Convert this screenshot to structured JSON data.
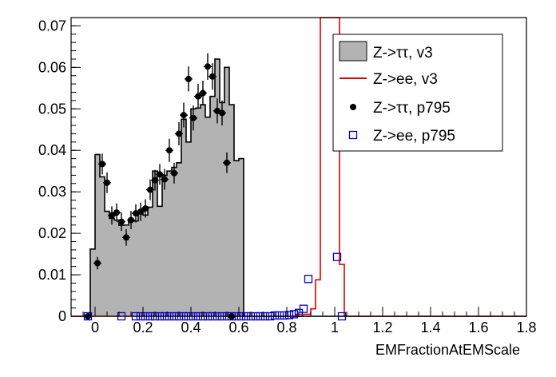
{
  "chart_data": {
    "type": "histogram",
    "xlabel": "EMFractionAtEMScale",
    "ylabel": "",
    "xlim": [
      -0.1,
      1.8
    ],
    "ylim": [
      0,
      0.072
    ],
    "grid": false,
    "legend_position": "top-right",
    "x_ticks": [
      0,
      0.2,
      0.4,
      0.6,
      0.8,
      1,
      1.2,
      1.4,
      1.6,
      1.8
    ],
    "x_tick_labels": [
      "0",
      "0.2",
      "0.4",
      "0.6",
      "0.8",
      "1",
      "1.2",
      "1.4",
      "1.6",
      "1.8"
    ],
    "y_ticks": [
      0,
      0.01,
      0.02,
      0.03,
      0.04,
      0.05,
      0.06,
      0.07
    ],
    "y_tick_labels": [
      "0",
      "0.01",
      "0.02",
      "0.03",
      "0.04",
      "0.05",
      "0.06",
      "0.07"
    ],
    "bin_edges": [
      -0.1,
      -0.08,
      -0.06,
      -0.04,
      -0.02,
      0,
      0.02,
      0.04,
      0.06,
      0.08,
      0.1,
      0.12,
      0.14,
      0.16,
      0.18,
      0.2,
      0.22,
      0.24,
      0.26,
      0.28,
      0.3,
      0.32,
      0.34,
      0.36,
      0.38,
      0.4,
      0.42,
      0.44,
      0.46,
      0.48,
      0.5,
      0.52,
      0.54,
      0.56,
      0.58,
      0.6,
      0.62,
      0.64,
      0.66,
      0.68,
      0.7,
      0.72,
      0.74,
      0.76,
      0.78,
      0.8,
      0.82,
      0.84,
      0.86,
      0.88,
      0.9,
      0.92,
      0.94,
      0.96,
      0.98,
      1,
      1.02,
      1.04,
      1.06,
      1.08,
      1.1,
      1.12,
      1.14,
      1.16,
      1.18,
      1.2,
      1.22,
      1.24,
      1.26,
      1.28,
      1.3,
      1.32,
      1.34,
      1.36,
      1.38,
      1.4,
      1.42,
      1.44,
      1.46,
      1.48,
      1.5,
      1.52,
      1.54,
      1.56,
      1.58,
      1.6,
      1.62,
      1.64,
      1.66,
      1.68,
      1.7,
      1.72,
      1.74,
      1.76,
      1.78,
      1.8
    ],
    "series": [
      {
        "name": "Z->ττ, v3",
        "style": "filled-histogram",
        "fill": "#b3b3b3",
        "line": "#000000",
        "values": [
          0,
          0,
          0,
          0,
          0.0162,
          0.039,
          0.0336,
          0.0253,
          0.0236,
          0.0232,
          0.0219,
          0.022,
          0.0229,
          0.023,
          0.0247,
          0.0244,
          0.0263,
          0.035,
          0.0265,
          0.034,
          0.035,
          0.0359,
          0.037,
          0.0475,
          0.042,
          0.05,
          0.0502,
          0.051,
          0.048,
          0.053,
          0.062,
          0.0515,
          0.06,
          0.051,
          0.0375,
          0.038,
          0,
          0,
          0,
          0,
          0,
          0,
          0,
          0,
          0,
          0,
          0,
          0,
          0,
          0,
          0,
          0,
          0,
          0,
          0,
          0,
          0,
          0,
          0,
          0,
          0,
          0,
          0,
          0,
          0,
          0,
          0,
          0,
          0,
          0,
          0,
          0,
          0,
          0,
          0,
          0,
          0,
          0,
          0,
          0,
          0,
          0,
          0,
          0,
          0,
          0,
          0,
          0,
          0,
          0,
          0,
          0,
          0,
          0,
          0
        ]
      },
      {
        "name": "Z->ee, v3",
        "style": "step-line",
        "color": "#e00000",
        "values": [
          0,
          0,
          0,
          0,
          0,
          0,
          0,
          0,
          0,
          0,
          0,
          0,
          0,
          0,
          0,
          0,
          0,
          0,
          0,
          0,
          0,
          0,
          0,
          0,
          0,
          0,
          0,
          0,
          0,
          0,
          0,
          0,
          0,
          0,
          0,
          0,
          0,
          0,
          0,
          0,
          0,
          0,
          0,
          0,
          0,
          0,
          0,
          0.0005,
          0.0005,
          0.0005,
          0.0018,
          0.0088,
          0.075,
          0.075,
          0.075,
          0.075,
          0.0125,
          0,
          0,
          0,
          0,
          0,
          0,
          0,
          0,
          0,
          0,
          0,
          0,
          0,
          0,
          0,
          0,
          0,
          0,
          0,
          0,
          0,
          0,
          0,
          0,
          0,
          0,
          0,
          0,
          0,
          0,
          0,
          0,
          0,
          0,
          0,
          0,
          0,
          0,
          0
        ]
      },
      {
        "name": "Z->ττ, p795",
        "style": "points-with-errors",
        "color": "#000000",
        "points": [
          {
            "x": -0.03,
            "y": 0.0,
            "err": 0.0
          },
          {
            "x": 0.01,
            "y": 0.0128,
            "err": 0.0015
          },
          {
            "x": 0.03,
            "y": 0.0367,
            "err": 0.0025
          },
          {
            "x": 0.05,
            "y": 0.0322,
            "err": 0.0025
          },
          {
            "x": 0.07,
            "y": 0.0243,
            "err": 0.0022
          },
          {
            "x": 0.09,
            "y": 0.025,
            "err": 0.0022
          },
          {
            "x": 0.11,
            "y": 0.0228,
            "err": 0.0022
          },
          {
            "x": 0.13,
            "y": 0.019,
            "err": 0.002
          },
          {
            "x": 0.15,
            "y": 0.0232,
            "err": 0.0022
          },
          {
            "x": 0.17,
            "y": 0.0248,
            "err": 0.0022
          },
          {
            "x": 0.19,
            "y": 0.0252,
            "err": 0.0022
          },
          {
            "x": 0.21,
            "y": 0.026,
            "err": 0.0022
          },
          {
            "x": 0.23,
            "y": 0.0305,
            "err": 0.0025
          },
          {
            "x": 0.25,
            "y": 0.0328,
            "err": 0.0025
          },
          {
            "x": 0.27,
            "y": 0.0342,
            "err": 0.0025
          },
          {
            "x": 0.29,
            "y": 0.033,
            "err": 0.0025
          },
          {
            "x": 0.31,
            "y": 0.04,
            "err": 0.0028
          },
          {
            "x": 0.33,
            "y": 0.0345,
            "err": 0.0025
          },
          {
            "x": 0.35,
            "y": 0.044,
            "err": 0.0028
          },
          {
            "x": 0.37,
            "y": 0.0485,
            "err": 0.003
          },
          {
            "x": 0.39,
            "y": 0.0572,
            "err": 0.003
          },
          {
            "x": 0.41,
            "y": 0.0478,
            "err": 0.003
          },
          {
            "x": 0.43,
            "y": 0.053,
            "err": 0.003
          },
          {
            "x": 0.45,
            "y": 0.0538,
            "err": 0.003
          },
          {
            "x": 0.47,
            "y": 0.0602,
            "err": 0.0032
          },
          {
            "x": 0.49,
            "y": 0.0578,
            "err": 0.0032
          },
          {
            "x": 0.51,
            "y": 0.0495,
            "err": 0.003
          },
          {
            "x": 0.53,
            "y": 0.049,
            "err": 0.003
          },
          {
            "x": 0.55,
            "y": 0.037,
            "err": 0.0025
          },
          {
            "x": 0.57,
            "y": 0.0,
            "err": 0.0
          }
        ]
      },
      {
        "name": "Z->ee, p795",
        "style": "open-square-markers",
        "color": "#0000cc",
        "points": [
          {
            "x": -0.03,
            "y": 0.0
          },
          {
            "x": 0.11,
            "y": 0.0
          },
          {
            "x": 0.17,
            "y": 0.0
          },
          {
            "x": 0.19,
            "y": 0.0
          },
          {
            "x": 0.21,
            "y": 0.0
          },
          {
            "x": 0.23,
            "y": 0.0
          },
          {
            "x": 0.25,
            "y": 0.0
          },
          {
            "x": 0.27,
            "y": 0.0
          },
          {
            "x": 0.29,
            "y": 0.0
          },
          {
            "x": 0.31,
            "y": 0.0
          },
          {
            "x": 0.33,
            "y": 0.0
          },
          {
            "x": 0.35,
            "y": 0.0
          },
          {
            "x": 0.37,
            "y": 0.0
          },
          {
            "x": 0.39,
            "y": 0.0
          },
          {
            "x": 0.41,
            "y": 0.0
          },
          {
            "x": 0.43,
            "y": 0.0
          },
          {
            "x": 0.45,
            "y": 0.0
          },
          {
            "x": 0.47,
            "y": 0.0
          },
          {
            "x": 0.49,
            "y": 0.0
          },
          {
            "x": 0.51,
            "y": 0.0
          },
          {
            "x": 0.53,
            "y": 0.0
          },
          {
            "x": 0.55,
            "y": 0.0
          },
          {
            "x": 0.57,
            "y": 0.0
          },
          {
            "x": 0.59,
            "y": 0.0
          },
          {
            "x": 0.61,
            "y": 0.0
          },
          {
            "x": 0.63,
            "y": 0.0
          },
          {
            "x": 0.65,
            "y": 0.0
          },
          {
            "x": 0.67,
            "y": 0.0
          },
          {
            "x": 0.69,
            "y": 0.0
          },
          {
            "x": 0.71,
            "y": 0.0
          },
          {
            "x": 0.73,
            "y": 0.0
          },
          {
            "x": 0.75,
            "y": 0.0002
          },
          {
            "x": 0.77,
            "y": 0.0002
          },
          {
            "x": 0.79,
            "y": 0.0002
          },
          {
            "x": 0.81,
            "y": 0.0003
          },
          {
            "x": 0.83,
            "y": 0.0005
          },
          {
            "x": 0.85,
            "y": 0.0008
          },
          {
            "x": 0.87,
            "y": 0.0018
          },
          {
            "x": 0.89,
            "y": 0.009
          },
          {
            "x": 1.01,
            "y": 0.0143
          },
          {
            "x": 1.03,
            "y": 0.0
          }
        ]
      }
    ],
    "legend": [
      {
        "label": "Z->ττ, v3",
        "marker": "filled-box"
      },
      {
        "label": "Z->ee, v3",
        "marker": "red-line"
      },
      {
        "label": "Z->ττ, p795",
        "marker": "dot"
      },
      {
        "label": "Z->ee, p795",
        "marker": "open-square"
      }
    ]
  }
}
